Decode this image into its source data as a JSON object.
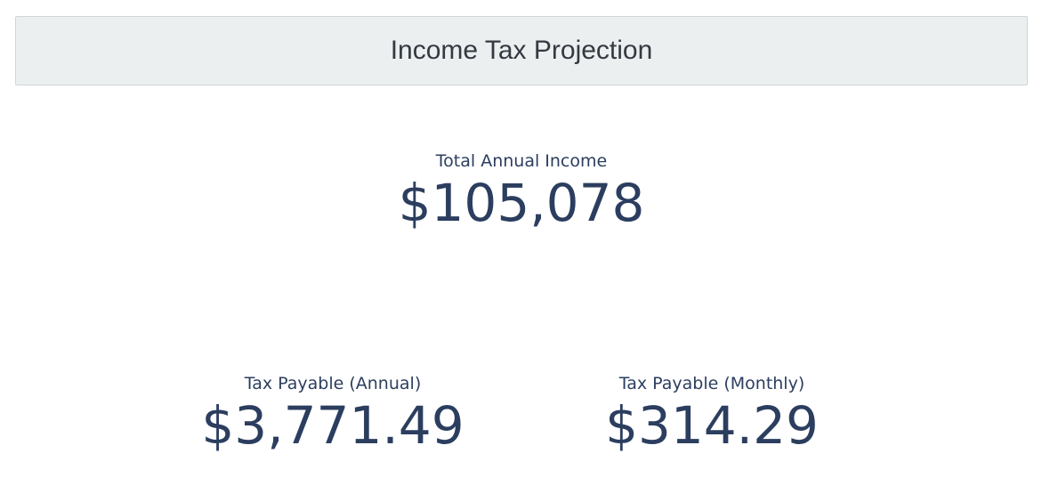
{
  "header": {
    "title": "Income Tax Projection"
  },
  "metrics": {
    "total_income": {
      "label": "Total Annual Income",
      "value": "$105,078"
    },
    "tax_annual": {
      "label": "Tax Payable (Annual)",
      "value": "$3,771.49"
    },
    "tax_monthly": {
      "label": "Tax Payable (Monthly)",
      "value": "$314.29"
    }
  },
  "colors": {
    "header_bg": "#eceff0",
    "header_border": "#cfd6da",
    "header_text": "#333a40",
    "metric_text": "#2c3e5f"
  }
}
